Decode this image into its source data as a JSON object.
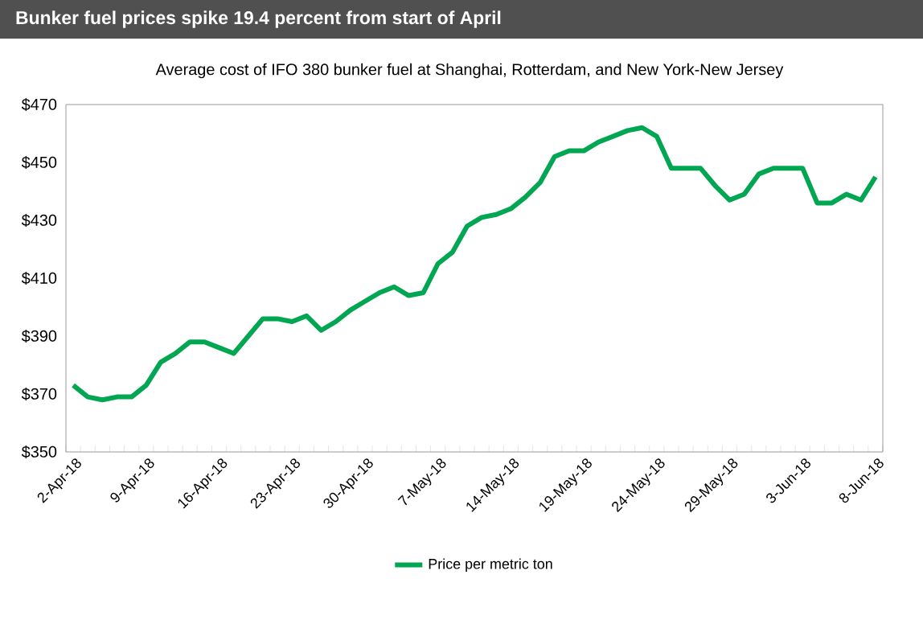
{
  "chart_data": {
    "type": "line",
    "title": "Bunker fuel prices spike 19.4 percent from start of April",
    "subtitle": "Average cost of IFO 380 bunker fuel at Shanghai, Rotterdam, and New York-New Jersey",
    "categories": [
      "2-Apr-18",
      null,
      null,
      null,
      null,
      "9-Apr-18",
      null,
      null,
      null,
      null,
      "16-Apr-18",
      null,
      null,
      null,
      null,
      "23-Apr-18",
      null,
      null,
      null,
      null,
      "30-Apr-18",
      null,
      null,
      null,
      null,
      "7-May-18",
      null,
      null,
      null,
      null,
      "14-May-18",
      null,
      null,
      null,
      null,
      "19-May-18",
      null,
      null,
      null,
      null,
      "24-May-18",
      null,
      null,
      null,
      null,
      "29-May-18",
      null,
      null,
      null,
      null,
      "3-Jun-18",
      null,
      null,
      null,
      null,
      "8-Jun-18"
    ],
    "series": [
      {
        "name": "Price per metric ton",
        "color": "#00a651",
        "values": [
          373,
          369,
          368,
          369,
          369,
          373,
          381,
          384,
          388,
          388,
          386,
          384,
          390,
          396,
          396,
          395,
          397,
          392,
          395,
          399,
          402,
          405,
          407,
          404,
          405,
          415,
          419,
          428,
          431,
          432,
          434,
          438,
          443,
          452,
          454,
          454,
          457,
          459,
          461,
          462,
          459,
          448,
          448,
          448,
          442,
          437,
          439,
          446,
          448,
          448,
          448,
          436,
          436,
          439,
          437,
          445
        ]
      }
    ],
    "ylim": [
      350,
      470
    ],
    "yticks": [
      {
        "value": 350,
        "label": "$350"
      },
      {
        "value": 370,
        "label": "$370"
      },
      {
        "value": 390,
        "label": "$390"
      },
      {
        "value": 410,
        "label": "$410"
      },
      {
        "value": 430,
        "label": "$430"
      },
      {
        "value": 450,
        "label": "$450"
      },
      {
        "value": 470,
        "label": "$470"
      }
    ],
    "legend": "bottom",
    "line_style": "solid"
  }
}
